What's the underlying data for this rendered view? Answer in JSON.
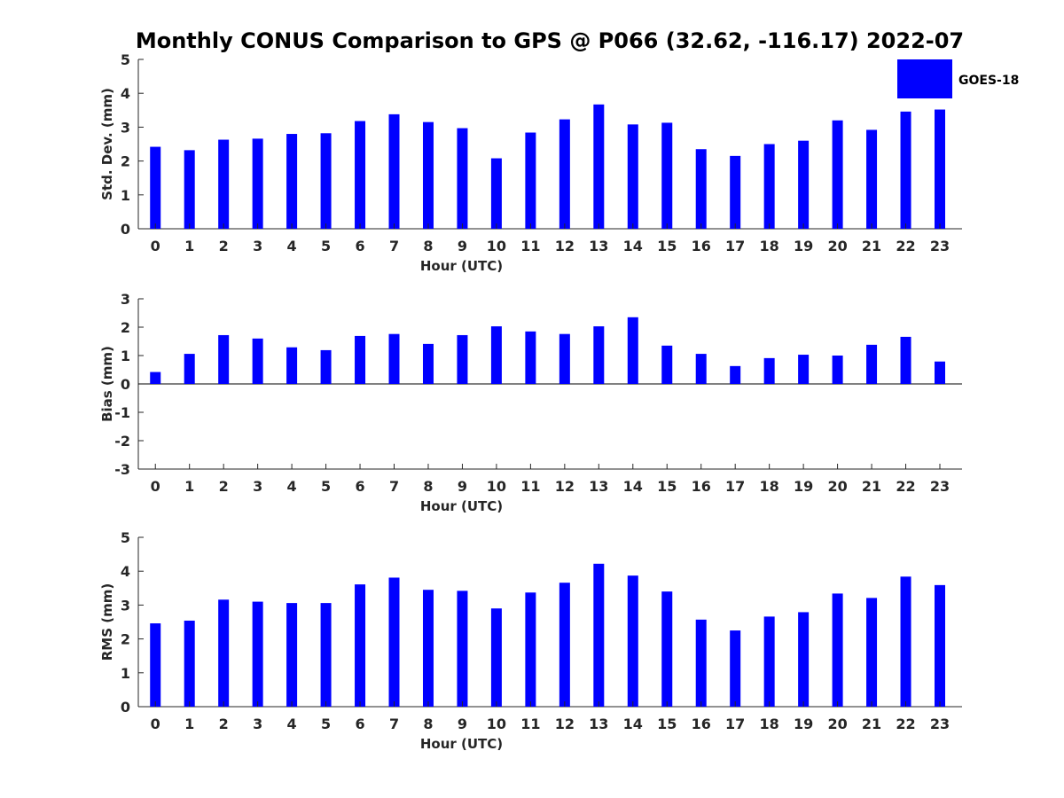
{
  "title": "Monthly CONUS Comparison to GPS @ P066 (32.62, -116.17) 2022-07",
  "legend": {
    "label": "GOES-18",
    "color": "#0000ff",
    "placement": "top-right"
  },
  "chart_data": [
    {
      "type": "bar",
      "xlabel": "Hour (UTC)",
      "ylabel": "Std. Dev. (mm)",
      "ylim": [
        0,
        5
      ],
      "yticks": [
        "0",
        "1",
        "2",
        "3",
        "4",
        "5"
      ],
      "categories": [
        "0",
        "1",
        "2",
        "3",
        "4",
        "5",
        "6",
        "7",
        "8",
        "9",
        "10",
        "11",
        "12",
        "13",
        "14",
        "15",
        "16",
        "17",
        "18",
        "19",
        "20",
        "21",
        "22",
        "23"
      ],
      "series": [
        {
          "name": "GOES-18",
          "color": "#0000ff",
          "values": [
            2.42,
            2.32,
            2.63,
            2.66,
            2.8,
            2.82,
            3.18,
            3.38,
            3.15,
            2.97,
            2.08,
            2.84,
            3.23,
            3.67,
            3.08,
            3.13,
            2.35,
            2.15,
            2.5,
            2.6,
            3.2,
            2.92,
            3.46,
            3.52
          ]
        }
      ]
    },
    {
      "type": "bar",
      "xlabel": "Hour (UTC)",
      "ylabel": "Bias (mm)",
      "ylim": [
        -3,
        3
      ],
      "yticks": [
        "-3",
        "-2",
        "-1",
        "0",
        "1",
        "2",
        "3"
      ],
      "categories": [
        "0",
        "1",
        "2",
        "3",
        "4",
        "5",
        "6",
        "7",
        "8",
        "9",
        "10",
        "11",
        "12",
        "13",
        "14",
        "15",
        "16",
        "17",
        "18",
        "19",
        "20",
        "21",
        "22",
        "23"
      ],
      "series": [
        {
          "name": "GOES-18",
          "color": "#0000ff",
          "values": [
            0.42,
            1.06,
            1.72,
            1.6,
            1.29,
            1.19,
            1.69,
            1.76,
            1.41,
            1.72,
            2.03,
            1.85,
            1.76,
            2.03,
            2.35,
            1.35,
            1.06,
            0.63,
            0.91,
            1.03,
            1.0,
            1.38,
            1.66,
            0.79
          ]
        }
      ]
    },
    {
      "type": "bar",
      "xlabel": "Hour (UTC)",
      "ylabel": "RMS (mm)",
      "ylim": [
        0,
        5
      ],
      "yticks": [
        "0",
        "1",
        "2",
        "3",
        "4",
        "5"
      ],
      "categories": [
        "0",
        "1",
        "2",
        "3",
        "4",
        "5",
        "6",
        "7",
        "8",
        "9",
        "10",
        "11",
        "12",
        "13",
        "14",
        "15",
        "16",
        "17",
        "18",
        "19",
        "20",
        "21",
        "22",
        "23"
      ],
      "series": [
        {
          "name": "GOES-18",
          "color": "#0000ff",
          "values": [
            2.46,
            2.54,
            3.16,
            3.1,
            3.06,
            3.06,
            3.61,
            3.81,
            3.45,
            3.42,
            2.9,
            3.37,
            3.66,
            4.22,
            3.87,
            3.4,
            2.57,
            2.25,
            2.66,
            2.79,
            3.34,
            3.21,
            3.84,
            3.59
          ]
        }
      ]
    }
  ]
}
